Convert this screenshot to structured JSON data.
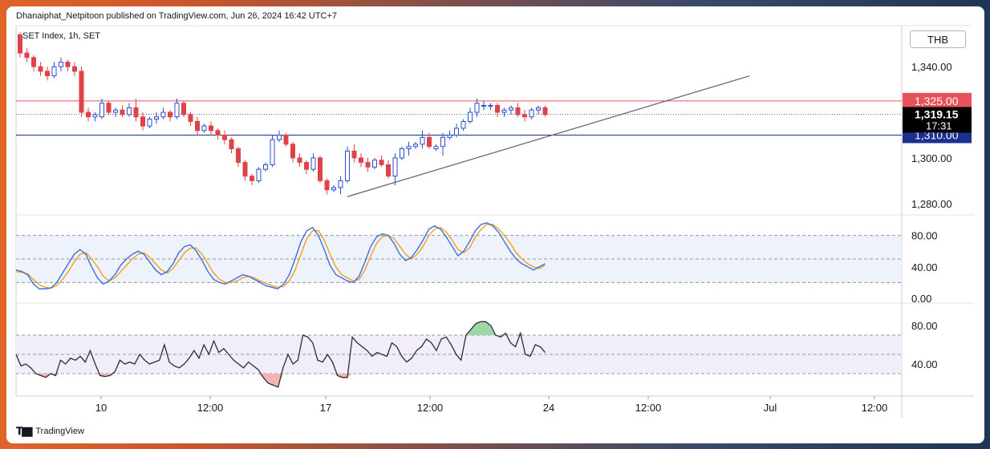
{
  "header": {
    "published_by": "Dhanaiphat_Netpitoon published on TradingView.com, Jun 26, 2024 16:42 UTC+7",
    "legend": "SET Index, 1h, SET",
    "currency": "THB",
    "footer_brand": "TradingView"
  },
  "chart_data": {
    "type": "candlestick",
    "symbol": "SET Index, 1h, SET",
    "x_ticks": [
      "10",
      "12:00",
      "17",
      "12:00",
      "24",
      "12:00",
      "Jul",
      "12:00"
    ],
    "y_ticks": [
      "1,340.00",
      "1,300.00",
      "1,280.00"
    ],
    "ylim": [
      1275,
      1358
    ],
    "levels": [
      {
        "label": "1,325.00",
        "value": 1325.0,
        "color": "#e8525b"
      },
      {
        "label": "1,310.00",
        "value": 1310.0,
        "color": "#1b2f8f"
      }
    ],
    "last_price": {
      "label": "1,319.15",
      "countdown": "17:31",
      "value": 1319.15
    },
    "candles": [
      [
        1354,
        1355,
        1344,
        1346
      ],
      [
        1346,
        1348,
        1342,
        1344
      ],
      [
        1344,
        1345,
        1338,
        1340
      ],
      [
        1340,
        1342,
        1336,
        1338
      ],
      [
        1338,
        1340,
        1334,
        1336
      ],
      [
        1336,
        1342,
        1335,
        1340
      ],
      [
        1340,
        1344,
        1338,
        1342
      ],
      [
        1342,
        1343,
        1338,
        1340
      ],
      [
        1340,
        1342,
        1336,
        1338
      ],
      [
        1338,
        1340,
        1318,
        1320
      ],
      [
        1320,
        1322,
        1316,
        1318
      ],
      [
        1318,
        1320,
        1316,
        1319
      ],
      [
        1318,
        1326,
        1317,
        1324
      ],
      [
        1324,
        1325,
        1319,
        1320
      ],
      [
        1320,
        1322,
        1318,
        1321
      ],
      [
        1321,
        1323,
        1318,
        1319
      ],
      [
        1319,
        1324,
        1318,
        1322
      ],
      [
        1322,
        1326,
        1316,
        1318
      ],
      [
        1318,
        1320,
        1312,
        1314
      ],
      [
        1314,
        1318,
        1313,
        1317
      ],
      [
        1317,
        1320,
        1315,
        1318
      ],
      [
        1318,
        1322,
        1317,
        1320
      ],
      [
        1320,
        1321,
        1316,
        1318
      ],
      [
        1318,
        1326,
        1317,
        1324
      ],
      [
        1324,
        1325,
        1318,
        1319
      ],
      [
        1319,
        1320,
        1314,
        1316
      ],
      [
        1316,
        1318,
        1310,
        1312
      ],
      [
        1312,
        1315,
        1311,
        1314
      ],
      [
        1314,
        1316,
        1310,
        1312
      ],
      [
        1312,
        1313,
        1308,
        1310
      ],
      [
        1310,
        1312,
        1306,
        1308
      ],
      [
        1308,
        1309,
        1302,
        1304
      ],
      [
        1304,
        1305,
        1296,
        1298
      ],
      [
        1298,
        1299,
        1290,
        1292
      ],
      [
        1292,
        1293,
        1288,
        1290
      ],
      [
        1290,
        1296,
        1289,
        1295
      ],
      [
        1295,
        1298,
        1294,
        1297
      ],
      [
        1297,
        1310,
        1296,
        1308
      ],
      [
        1308,
        1312,
        1307,
        1310
      ],
      [
        1310,
        1311,
        1305,
        1306
      ],
      [
        1306,
        1307,
        1298,
        1300
      ],
      [
        1300,
        1302,
        1296,
        1298
      ],
      [
        1298,
        1299,
        1293,
        1295
      ],
      [
        1295,
        1302,
        1294,
        1300
      ],
      [
        1300,
        1301,
        1289,
        1290
      ],
      [
        1290,
        1291,
        1284,
        1286
      ],
      [
        1286,
        1288,
        1285,
        1287
      ],
      [
        1287,
        1292,
        1284,
        1290
      ],
      [
        1290,
        1305,
        1289,
        1303
      ],
      [
        1303,
        1306,
        1298,
        1300
      ],
      [
        1300,
        1302,
        1296,
        1298
      ],
      [
        1298,
        1300,
        1294,
        1296
      ],
      [
        1296,
        1300,
        1295,
        1299
      ],
      [
        1299,
        1301,
        1296,
        1297
      ],
      [
        1297,
        1299,
        1291,
        1292
      ],
      [
        1292,
        1302,
        1288,
        1300
      ],
      [
        1300,
        1305,
        1299,
        1304
      ],
      [
        1304,
        1307,
        1301,
        1305
      ],
      [
        1305,
        1307,
        1304,
        1306
      ],
      [
        1306,
        1312,
        1304,
        1309
      ],
      [
        1309,
        1311,
        1304,
        1305
      ],
      [
        1304,
        1306,
        1303,
        1305
      ],
      [
        1305,
        1311,
        1301,
        1309
      ],
      [
        1309,
        1312,
        1308,
        1310
      ],
      [
        1310,
        1315,
        1309,
        1313
      ],
      [
        1313,
        1317,
        1312,
        1316
      ],
      [
        1316,
        1322,
        1315,
        1320
      ],
      [
        1320,
        1326,
        1318,
        1324
      ],
      [
        1323,
        1325,
        1321,
        1323
      ],
      [
        1323,
        1324,
        1321,
        1323
      ],
      [
        1323,
        1324,
        1318,
        1320
      ],
      [
        1320,
        1322,
        1318,
        1321
      ],
      [
        1321,
        1323,
        1319,
        1322
      ],
      [
        1322,
        1324,
        1318,
        1319
      ],
      [
        1319,
        1321,
        1316,
        1318
      ],
      [
        1318,
        1322,
        1317,
        1321
      ],
      [
        1321,
        1323,
        1319,
        1322
      ],
      [
        1322,
        1323,
        1318,
        1319
      ]
    ],
    "trendline": {
      "from": [
        48,
        1283
      ],
      "to": [
        107,
        1336
      ],
      "color": "#5d606b"
    },
    "stochastic": {
      "y_ticks": [
        "80.00",
        "40.00",
        "0.00"
      ],
      "ylim": [
        0,
        100
      ],
      "bands": [
        20,
        50,
        80
      ],
      "k": [
        36,
        34,
        30,
        18,
        12,
        12,
        13,
        20,
        32,
        44,
        56,
        62,
        56,
        40,
        26,
        18,
        22,
        30,
        42,
        50,
        56,
        60,
        56,
        46,
        36,
        30,
        34,
        44,
        58,
        66,
        68,
        60,
        48,
        34,
        24,
        20,
        18,
        22,
        26,
        30,
        28,
        24,
        20,
        16,
        14,
        12,
        18,
        30,
        50,
        72,
        86,
        90,
        80,
        62,
        42,
        30,
        26,
        22,
        20,
        28,
        46,
        66,
        78,
        82,
        80,
        70,
        56,
        48,
        52,
        62,
        74,
        88,
        92,
        88,
        78,
        66,
        54,
        60,
        72,
        86,
        94,
        96,
        92,
        84,
        72,
        60,
        50,
        44,
        40,
        36,
        40,
        44
      ],
      "d": [
        34,
        33,
        31,
        24,
        17,
        14,
        13,
        16,
        24,
        34,
        46,
        56,
        58,
        50,
        40,
        28,
        22,
        26,
        34,
        42,
        50,
        56,
        58,
        52,
        44,
        36,
        32,
        38,
        48,
        58,
        64,
        64,
        56,
        44,
        32,
        24,
        20,
        20,
        22,
        26,
        28,
        26,
        22,
        19,
        16,
        14,
        15,
        22,
        36,
        56,
        76,
        86,
        86,
        74,
        56,
        40,
        30,
        26,
        22,
        24,
        36,
        54,
        70,
        78,
        80,
        76,
        66,
        56,
        50,
        56,
        66,
        80,
        88,
        90,
        84,
        74,
        62,
        58,
        64,
        78,
        88,
        94,
        94,
        88,
        80,
        70,
        58,
        50,
        44,
        40,
        38,
        42
      ]
    },
    "oscillator": {
      "y_ticks": [
        "80.00",
        "40.00"
      ],
      "ylim": [
        10,
        100
      ],
      "bands": [
        30,
        50,
        70
      ],
      "values": [
        50,
        38,
        40,
        36,
        30,
        28,
        26,
        30,
        28,
        44,
        40,
        46,
        44,
        48,
        42,
        54,
        40,
        28,
        27,
        28,
        32,
        44,
        40,
        42,
        40,
        50,
        44,
        40,
        42,
        44,
        60,
        42,
        38,
        36,
        40,
        46,
        54,
        46,
        60,
        50,
        64,
        52,
        56,
        50,
        44,
        40,
        36,
        42,
        38,
        34,
        26,
        20,
        18,
        16,
        36,
        50,
        40,
        44,
        70,
        68,
        62,
        44,
        42,
        50,
        42,
        28,
        26,
        26,
        68,
        62,
        58,
        54,
        48,
        52,
        50,
        48,
        62,
        58,
        48,
        42,
        46,
        54,
        58,
        66,
        62,
        54,
        66,
        68,
        60,
        50,
        44,
        70,
        76,
        82,
        84,
        84,
        80,
        70,
        68,
        72,
        62,
        58,
        72,
        50,
        48,
        60,
        58,
        52
      ]
    }
  }
}
